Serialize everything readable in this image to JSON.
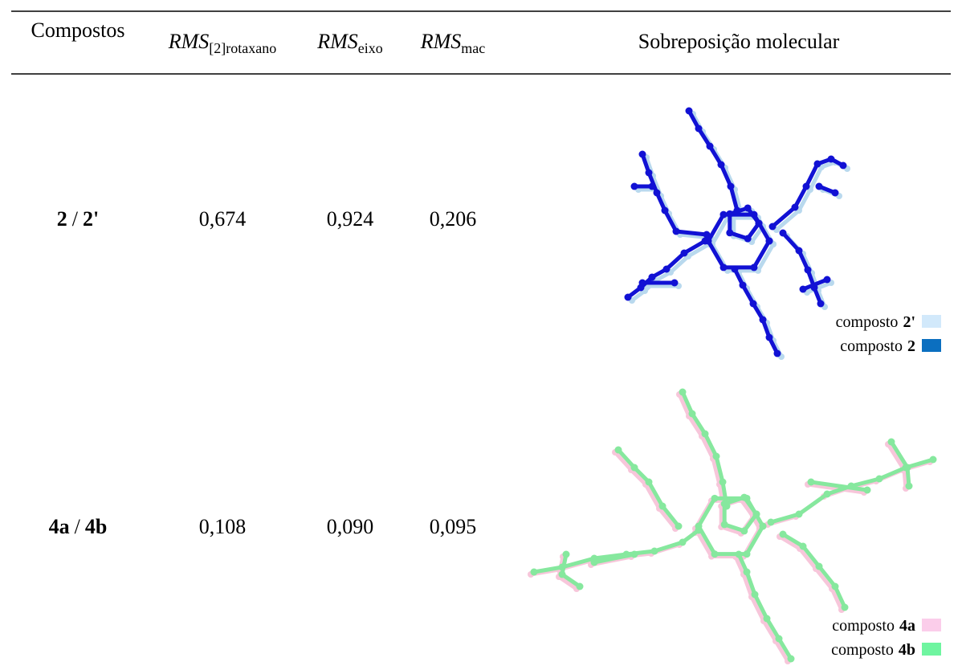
{
  "table": {
    "header": [
      {
        "text": "Compostos"
      },
      {
        "main": "RMS",
        "sub": "[2]rotaxano"
      },
      {
        "main": "RMS",
        "sub": "eixo"
      },
      {
        "main": "RMS",
        "sub": "mac"
      },
      {
        "text": "Sobreposição molecular"
      }
    ],
    "rows": [
      {
        "compound": {
          "first": "2",
          "separator": "/",
          "second": "2'"
        },
        "rms_rotaxane": "0,674",
        "rms_axis": "0,924",
        "rms_macrocycle": "0,206",
        "legend": [
          {
            "label": "composto",
            "id": "2'",
            "color": "#d2e9fb"
          },
          {
            "label": "composto",
            "id": "2",
            "color": "#0b6fc0"
          }
        ]
      },
      {
        "compound": {
          "first": "4a",
          "separator": "/",
          "second": "4b"
        },
        "rms_rotaxane": "0,108",
        "rms_axis": "0,090",
        "rms_macrocycle": "0,095",
        "legend": [
          {
            "label": "composto",
            "id": "4a",
            "color": "#fbcdea"
          },
          {
            "label": "composto",
            "id": "4b",
            "color": "#6ff5a0"
          }
        ]
      }
    ]
  }
}
